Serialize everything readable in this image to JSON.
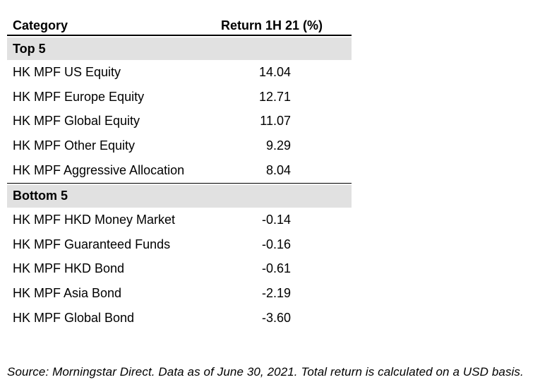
{
  "chart_data": {
    "type": "table",
    "columns": [
      "Category",
      "Return 1H 21 (%)"
    ],
    "sections": [
      {
        "label": "Top 5",
        "rows": [
          {
            "category": "HK MPF US Equity",
            "value": "14.04",
            "value_num": 14.04
          },
          {
            "category": "HK MPF Europe Equity",
            "value": "12.71",
            "value_num": 12.71
          },
          {
            "category": "HK MPF Global Equity",
            "value": "11.07",
            "value_num": 11.07
          },
          {
            "category": "HK MPF Other Equity",
            "value": "9.29",
            "value_num": 9.29
          },
          {
            "category": "HK MPF Aggressive Allocation",
            "value": "8.04",
            "value_num": 8.04
          }
        ]
      },
      {
        "label": "Bottom 5",
        "rows": [
          {
            "category": "HK MPF HKD Money Market",
            "value": "-0.14",
            "value_num": -0.14
          },
          {
            "category": "HK MPF Guaranteed Funds",
            "value": "-0.16",
            "value_num": -0.16
          },
          {
            "category": "HK MPF HKD Bond",
            "value": "-0.61",
            "value_num": -0.61
          },
          {
            "category": "HK MPF Asia Bond",
            "value": "-2.19",
            "value_num": -2.19
          },
          {
            "category": "HK MPF Global Bond",
            "value": "-3.60",
            "value_num": -3.6
          }
        ]
      }
    ],
    "source_note": "Source: Morningstar Direct. Data as of June 30, 2021. Total return is calculated on a USD basis.",
    "layout_hints": {
      "value_alignment": "decimal",
      "grid": "off"
    }
  },
  "colors": {
    "band": "#e1e1e1",
    "rule": "#000000",
    "text": "#000000",
    "background": "#ffffff"
  }
}
